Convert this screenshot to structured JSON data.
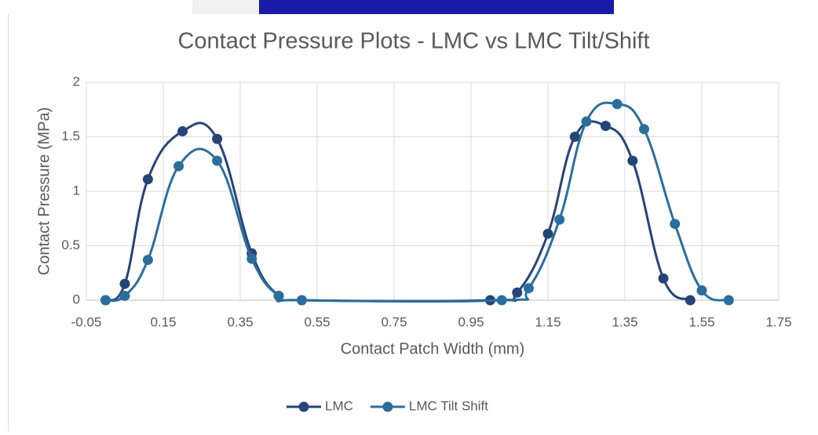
{
  "chart_data": {
    "type": "scatter-smooth",
    "title": "Contact Pressure Plots - LMC vs LMC Tilt/Shift",
    "x_label": "Contact Patch Width (mm)",
    "y_label": "Contact Pressure (MPa)",
    "xlim": [
      -0.05,
      1.75
    ],
    "xticks": [
      -0.05,
      0.15,
      0.35,
      0.55,
      0.75,
      0.95,
      1.15,
      1.35,
      1.55,
      1.75
    ],
    "ylim": [
      0,
      2
    ],
    "yticks": [
      0,
      0.5,
      1,
      1.5,
      2
    ],
    "grid": true,
    "legend": "bottom",
    "series": [
      {
        "name": "LMC",
        "color": "#264478",
        "x": [
          0,
          0.05,
          0.11,
          0.2,
          0.29,
          0.38,
          0.45,
          0.51,
          1.0,
          1.07,
          1.15,
          1.22,
          1.3,
          1.37,
          1.45,
          1.52
        ],
        "values": [
          0,
          0.15,
          1.11,
          1.55,
          1.48,
          0.43,
          0.04,
          0,
          0,
          0.07,
          0.61,
          1.5,
          1.6,
          1.28,
          0.2,
          0
        ]
      },
      {
        "name": "LMC Tilt Shift",
        "color": "#2B6E9E",
        "x": [
          0,
          0.05,
          0.11,
          0.19,
          0.29,
          0.38,
          0.45,
          0.51,
          1.03,
          1.1,
          1.18,
          1.25,
          1.33,
          1.4,
          1.48,
          1.55,
          1.62
        ],
        "values": [
          0,
          0.04,
          0.37,
          1.23,
          1.28,
          0.38,
          0.04,
          0,
          0,
          0.11,
          0.74,
          1.64,
          1.8,
          1.57,
          0.7,
          0.09,
          0
        ]
      }
    ]
  }
}
